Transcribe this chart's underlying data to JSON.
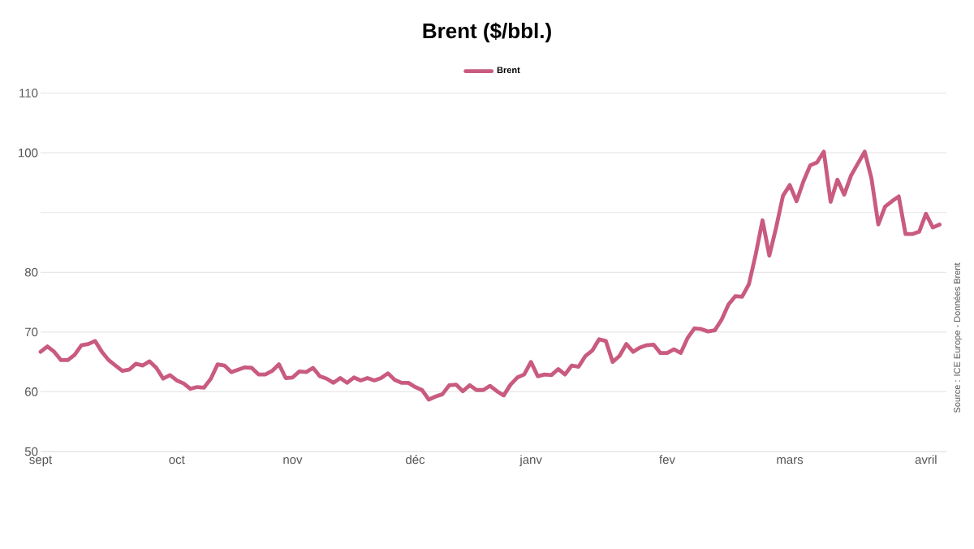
{
  "chart_data": {
    "type": "line",
    "title": "Brent ($/bbl.)",
    "categories": [
      "sept",
      null,
      null,
      null,
      null,
      null,
      null,
      null,
      null,
      null,
      null,
      null,
      null,
      null,
      null,
      null,
      null,
      null,
      null,
      null,
      "oct",
      null,
      null,
      null,
      null,
      null,
      null,
      null,
      null,
      null,
      null,
      null,
      null,
      null,
      null,
      null,
      null,
      "nov",
      null,
      null,
      null,
      null,
      null,
      null,
      null,
      null,
      null,
      null,
      null,
      null,
      null,
      null,
      null,
      null,
      null,
      "déc",
      null,
      null,
      null,
      null,
      null,
      null,
      null,
      null,
      null,
      null,
      null,
      null,
      null,
      null,
      null,
      null,
      "janv",
      null,
      null,
      null,
      null,
      null,
      null,
      null,
      null,
      null,
      null,
      null,
      null,
      null,
      null,
      null,
      null,
      null,
      null,
      null,
      "fev",
      null,
      null,
      null,
      null,
      null,
      null,
      null,
      null,
      null,
      null,
      null,
      null,
      null,
      null,
      null,
      null,
      null,
      "mars",
      null,
      null,
      null,
      null,
      null,
      null,
      null,
      null,
      null,
      null,
      null,
      null,
      null,
      null,
      null,
      null,
      null,
      null,
      null,
      "avril",
      null,
      null
    ],
    "series": [
      {
        "name": "Brent",
        "color": "#c95b7f",
        "values": [
          66.7,
          67.6,
          66.7,
          65.3,
          65.3,
          66.2,
          67.8,
          68.0,
          68.5,
          66.7,
          65.3,
          64.4,
          63.5,
          63.7,
          64.7,
          64.4,
          65.1,
          64.0,
          62.2,
          62.8,
          61.9,
          61.4,
          60.5,
          60.8,
          60.7,
          62.2,
          64.6,
          64.4,
          63.3,
          63.7,
          64.1,
          64.0,
          62.9,
          62.9,
          63.5,
          64.6,
          62.3,
          62.4,
          63.4,
          63.3,
          64.0,
          62.6,
          62.2,
          61.5,
          62.3,
          61.5,
          62.4,
          61.9,
          62.3,
          61.9,
          62.3,
          63.1,
          62.0,
          61.5,
          61.5,
          60.8,
          60.3,
          58.7,
          59.2,
          59.6,
          61.1,
          61.2,
          60.1,
          61.1,
          60.3,
          60.3,
          61.0,
          60.1,
          59.4,
          61.2,
          62.4,
          62.9,
          65.0,
          62.6,
          62.9,
          62.8,
          63.8,
          62.9,
          64.4,
          64.2,
          66.0,
          66.9,
          68.8,
          68.5,
          65.0,
          66.0,
          68.0,
          66.7,
          67.4,
          67.8,
          67.9,
          66.5,
          66.5,
          67.1,
          66.5,
          69.0,
          70.6,
          70.5,
          70.1,
          70.3,
          72.1,
          74.6,
          76.0,
          75.9,
          78.0,
          83.0,
          88.7,
          82.8,
          87.5,
          92.8,
          94.6,
          91.9,
          95.2,
          97.9,
          98.4,
          100.2,
          91.8,
          95.5,
          93.0,
          96.2,
          98.2,
          100.2,
          95.7,
          88.0,
          91.0,
          91.9,
          92.7,
          86.4,
          86.4,
          86.8,
          89.8,
          87.5,
          88.0
        ]
      }
    ],
    "ylim": [
      50,
      110
    ],
    "yticks": [
      50,
      60,
      70,
      80,
      {
        "value": 90,
        "label": null
      },
      100,
      110
    ],
    "grid": "y",
    "legend": "top",
    "annotations": [
      "Source : ICE Europe - Données Brent"
    ]
  }
}
